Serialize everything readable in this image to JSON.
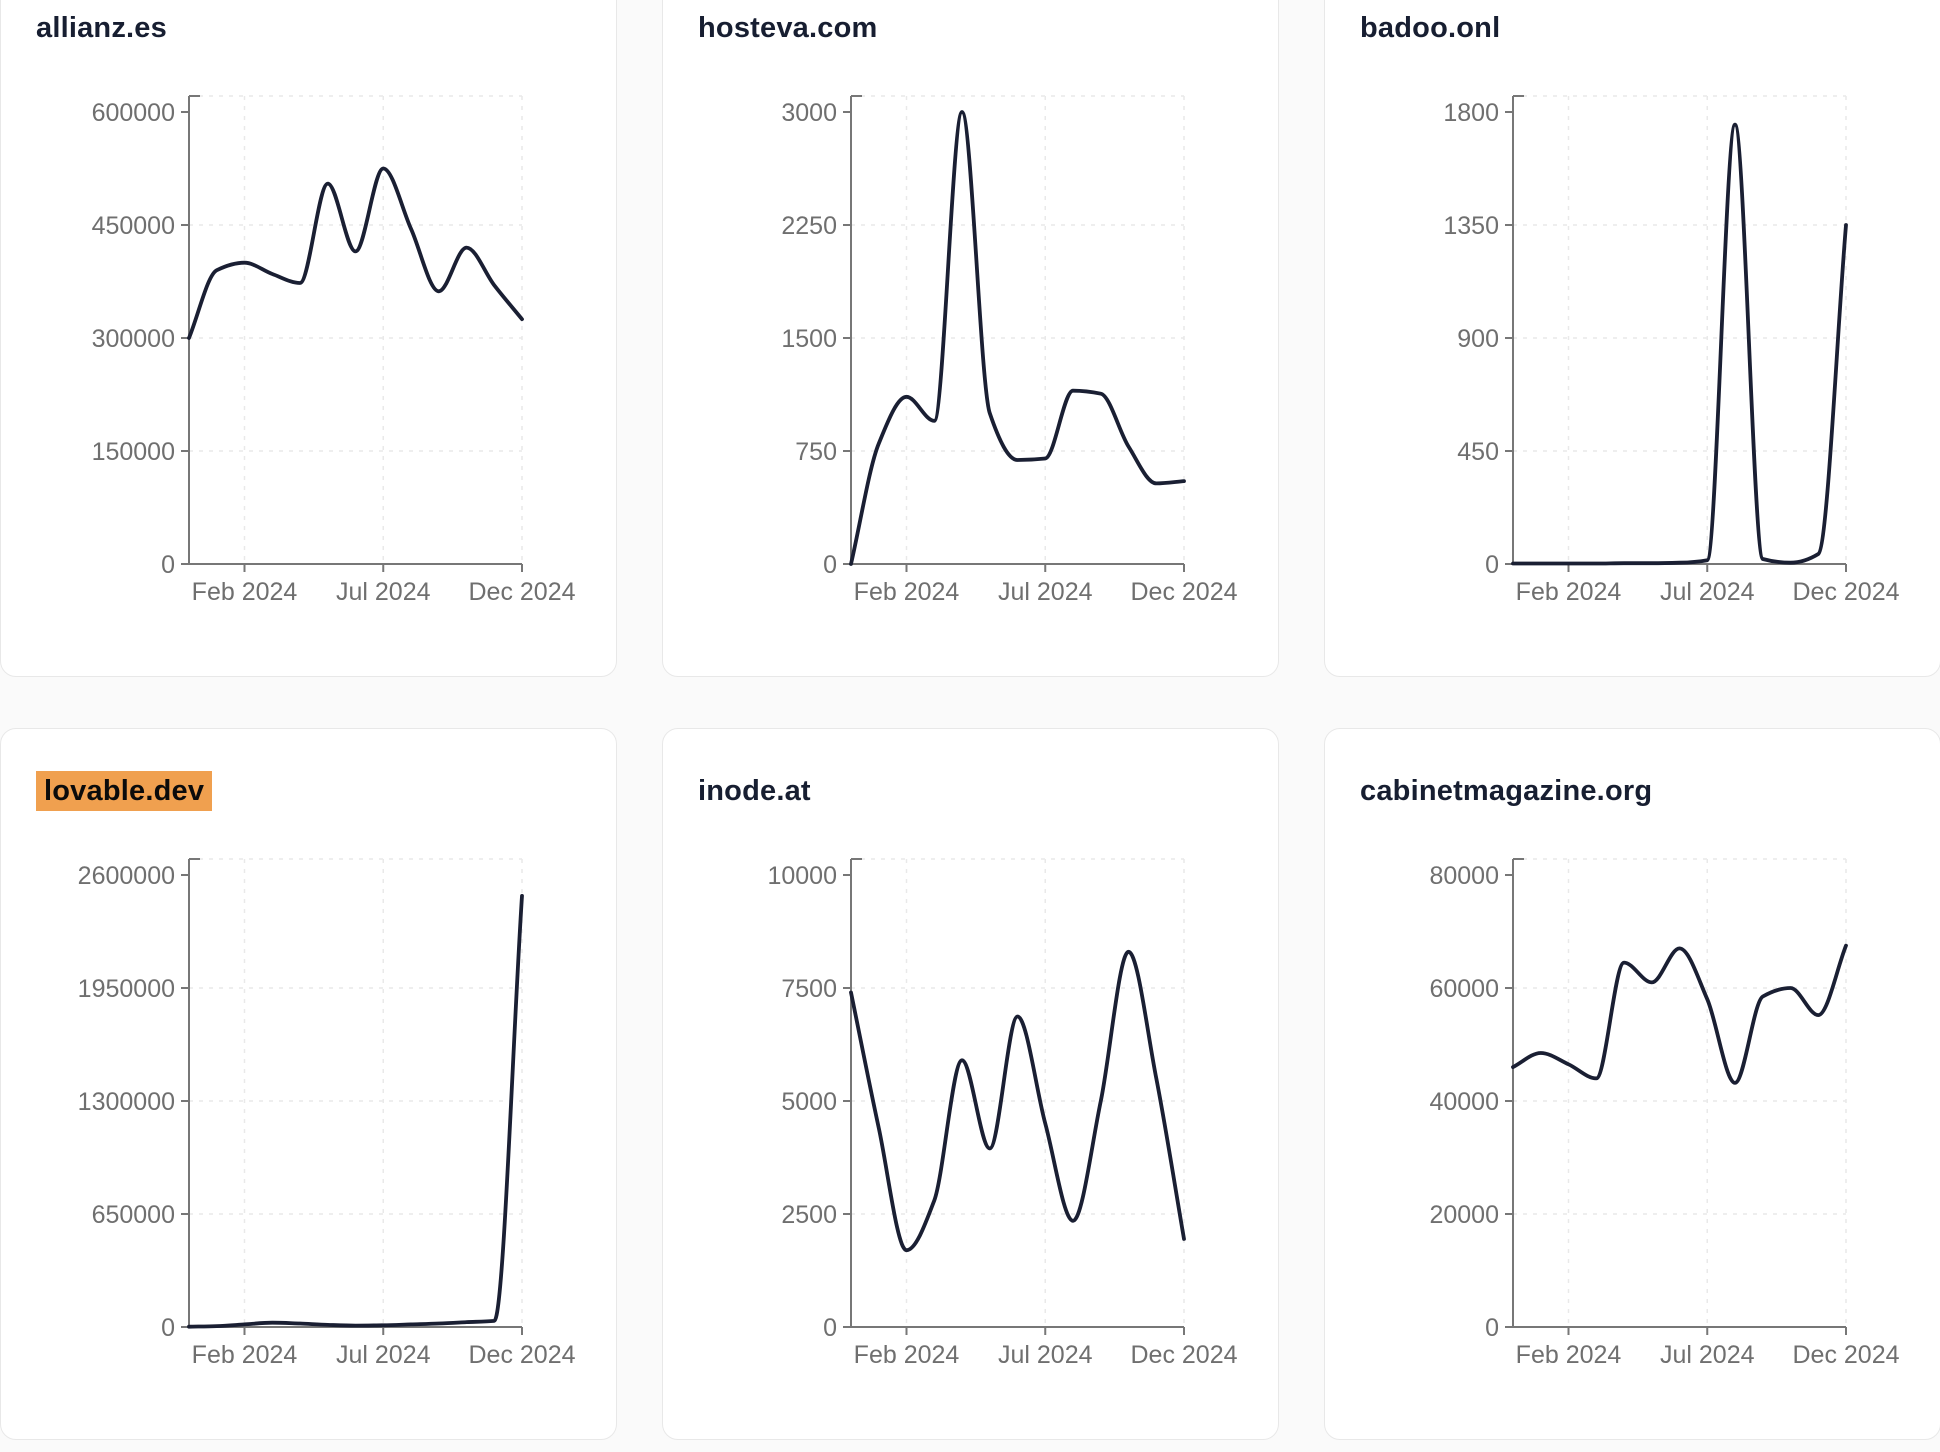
{
  "style": {
    "page_background": "#fafafa",
    "card_background": "#ffffff",
    "card_border": "#e8e8e8",
    "title_color": "#171e31",
    "line_color": "#1a1f33",
    "axis_color": "#777777",
    "tick_label_color": "#6f6f6f",
    "grid_color": "#e9e9e9",
    "highlight_color": "#f0a04f",
    "highlight_text_color": "#0b0b0b"
  },
  "chart_data": [
    {
      "type": "line",
      "title": "allianz.es",
      "title_highlighted": false,
      "x": [
        "Dec 2023",
        "Jan 2024",
        "Feb 2024",
        "Mar 2024",
        "Apr 2024",
        "May 2024",
        "Jun 2024",
        "Jul 2024",
        "Aug 2024",
        "Sep 2024",
        "Oct 2024",
        "Nov 2024",
        "Dec 2024"
      ],
      "values": [
        300000,
        390000,
        400000,
        385000,
        373000,
        505000,
        415000,
        525000,
        445000,
        362000,
        420000,
        370000,
        325000
      ],
      "y_ticks": [
        0,
        150000,
        300000,
        450000,
        600000
      ],
      "ylim": [
        0,
        600000
      ],
      "x_tick_labels": [
        "Feb 2024",
        "Jul 2024",
        "Dec 2024"
      ],
      "x_tick_positions": [
        2,
        7,
        12
      ],
      "grid": "dashed",
      "legend": false
    },
    {
      "type": "line",
      "title": "hosteva.com",
      "title_highlighted": false,
      "x": [
        "Dec 2023",
        "Jan 2024",
        "Feb 2024",
        "Mar 2024",
        "Apr 2024",
        "May 2024",
        "Jun 2024",
        "Jul 2024",
        "Aug 2024",
        "Sep 2024",
        "Oct 2024",
        "Nov 2024",
        "Dec 2024"
      ],
      "values": [
        0,
        800,
        1110,
        950,
        3000,
        1000,
        690,
        700,
        1150,
        1130,
        780,
        535,
        550
      ],
      "y_ticks": [
        0,
        750,
        1500,
        2250,
        3000
      ],
      "ylim": [
        0,
        3000
      ],
      "x_tick_labels": [
        "Feb 2024",
        "Jul 2024",
        "Dec 2024"
      ],
      "x_tick_positions": [
        2,
        7,
        12
      ],
      "grid": "dashed",
      "legend": false
    },
    {
      "type": "line",
      "title": "badoo.onl",
      "title_highlighted": false,
      "x": [
        "Dec 2023",
        "Jan 2024",
        "Feb 2024",
        "Mar 2024",
        "Apr 2024",
        "May 2024",
        "Jun 2024",
        "Jul 2024",
        "Aug 2024",
        "Sep 2024",
        "Oct 2024",
        "Nov 2024",
        "Dec 2024"
      ],
      "values": [
        2,
        2,
        2,
        2,
        3,
        3,
        5,
        15,
        1750,
        20,
        5,
        40,
        1350
      ],
      "y_ticks": [
        0,
        450,
        900,
        1350,
        1800
      ],
      "ylim": [
        0,
        1800
      ],
      "x_tick_labels": [
        "Feb 2024",
        "Jul 2024",
        "Dec 2024"
      ],
      "x_tick_positions": [
        2,
        7,
        12
      ],
      "grid": "dashed",
      "legend": false
    },
    {
      "type": "line",
      "title": "lovable.dev",
      "title_highlighted": true,
      "x": [
        "Dec 2023",
        "Jan 2024",
        "Feb 2024",
        "Mar 2024",
        "Apr 2024",
        "May 2024",
        "Jun 2024",
        "Jul 2024",
        "Aug 2024",
        "Sep 2024",
        "Oct 2024",
        "Nov 2024",
        "Dec 2024"
      ],
      "values": [
        2000,
        5000,
        15000,
        25000,
        20000,
        12000,
        8000,
        10000,
        15000,
        20000,
        28000,
        35000,
        2480000
      ],
      "y_ticks": [
        0,
        650000,
        1300000,
        1950000,
        2600000
      ],
      "ylim": [
        0,
        2600000
      ],
      "x_tick_labels": [
        "Feb 2024",
        "Jul 2024",
        "Dec 2024"
      ],
      "x_tick_positions": [
        2,
        7,
        12
      ],
      "grid": "dashed",
      "legend": false
    },
    {
      "type": "line",
      "title": "inode.at",
      "title_highlighted": false,
      "x": [
        "Dec 2023",
        "Jan 2024",
        "Feb 2024",
        "Mar 2024",
        "Apr 2024",
        "May 2024",
        "Jun 2024",
        "Jul 2024",
        "Aug 2024",
        "Sep 2024",
        "Oct 2024",
        "Nov 2024",
        "Dec 2024"
      ],
      "values": [
        7400,
        4400,
        1700,
        2800,
        5900,
        3950,
        6870,
        4500,
        2350,
        5000,
        8300,
        5500,
        1950
      ],
      "y_ticks": [
        0,
        2500,
        5000,
        7500,
        10000
      ],
      "ylim": [
        0,
        10000
      ],
      "x_tick_labels": [
        "Feb 2024",
        "Jul 2024",
        "Dec 2024"
      ],
      "x_tick_positions": [
        2,
        7,
        12
      ],
      "grid": "dashed",
      "legend": false
    },
    {
      "type": "line",
      "title": "cabinetmagazine.org",
      "title_highlighted": false,
      "x": [
        "Dec 2023",
        "Jan 2024",
        "Feb 2024",
        "Mar 2024",
        "Apr 2024",
        "May 2024",
        "Jun 2024",
        "Jul 2024",
        "Aug 2024",
        "Sep 2024",
        "Oct 2024",
        "Nov 2024",
        "Dec 2024"
      ],
      "values": [
        46000,
        48500,
        46500,
        44000,
        64500,
        61000,
        67000,
        58000,
        43200,
        58500,
        60000,
        55200,
        67500
      ],
      "y_ticks": [
        0,
        20000,
        40000,
        60000,
        80000
      ],
      "ylim": [
        0,
        80000
      ],
      "x_tick_labels": [
        "Feb 2024",
        "Jul 2024",
        "Dec 2024"
      ],
      "x_tick_positions": [
        2,
        7,
        12
      ],
      "grid": "dashed",
      "legend": false
    }
  ]
}
